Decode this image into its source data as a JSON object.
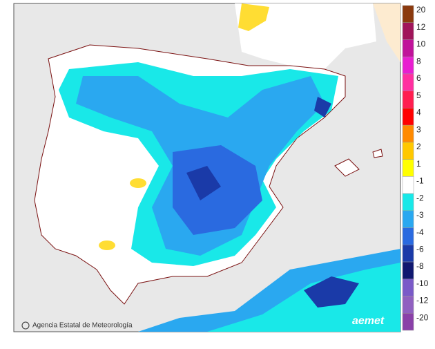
{
  "map": {
    "credit": "Agencia Estatal de Meteorología",
    "logo": "aemet",
    "legend": [
      {
        "label": "20",
        "color": "#8b3a0e"
      },
      {
        "label": "12",
        "color": "#a0155a"
      },
      {
        "label": "10",
        "color": "#c0139a"
      },
      {
        "label": "8",
        "color": "#e81fd0"
      },
      {
        "label": "6",
        "color": "#ff2fa0"
      },
      {
        "label": "5",
        "color": "#ff1e50"
      },
      {
        "label": "4",
        "color": "#ff0000"
      },
      {
        "label": "3",
        "color": "#ff8a00"
      },
      {
        "label": "2",
        "color": "#ffc800"
      },
      {
        "label": "1",
        "color": "#ffff00"
      },
      {
        "label": "-1",
        "color": "#ffffff"
      },
      {
        "label": "-2",
        "color": "#19e8e8"
      },
      {
        "label": "-3",
        "color": "#2aa8f0"
      },
      {
        "label": "-4",
        "color": "#2a6ae0"
      },
      {
        "label": "-6",
        "color": "#1a3aa8"
      },
      {
        "label": "-8",
        "color": "#101870"
      },
      {
        "label": "-10",
        "color": "#7a5ac8"
      },
      {
        "label": "-12",
        "color": "#9060c0"
      },
      {
        "label": "-20",
        "color": "#8a40a8"
      }
    ]
  }
}
